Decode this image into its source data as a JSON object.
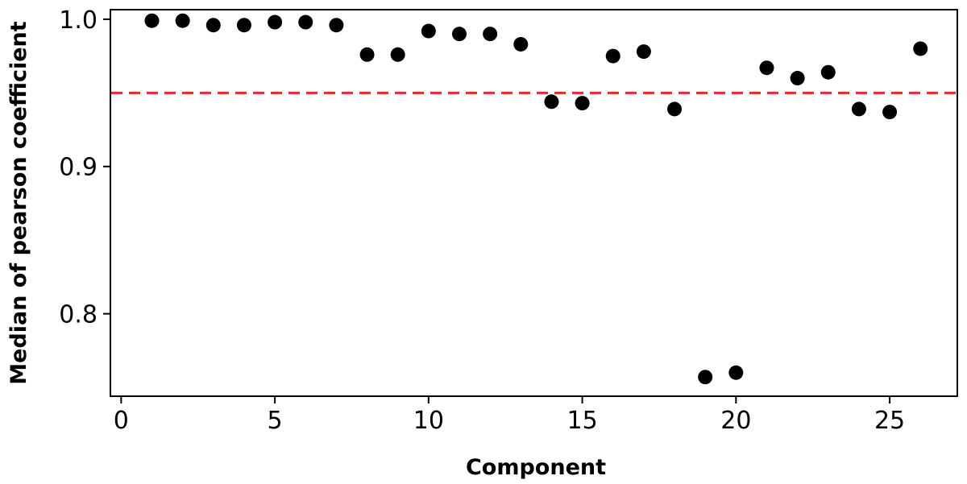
{
  "chart_data": {
    "type": "scatter",
    "title": "",
    "xlabel": "Component",
    "ylabel": "Median of pearson coefficient",
    "xlim": [
      -0.35,
      27.2
    ],
    "ylim": [
      0.744,
      1.0065
    ],
    "xticks": [
      0,
      5,
      10,
      15,
      20,
      25
    ],
    "yticks": [
      0.8,
      0.9,
      1.0
    ],
    "xtick_labels": [
      "0",
      "5",
      "10",
      "15",
      "20",
      "25"
    ],
    "ytick_labels": [
      "0.8",
      "0.9",
      "1.0"
    ],
    "grid": false,
    "legend": "none",
    "marker_color": "#000000",
    "series": [
      {
        "x": [
          1,
          2,
          3,
          4,
          5,
          6,
          7,
          8,
          9,
          10,
          11,
          12,
          13,
          14,
          15,
          16,
          17,
          18,
          19,
          20,
          21,
          22,
          23,
          24,
          25,
          26
        ],
        "y": [
          0.999,
          0.999,
          0.996,
          0.996,
          0.998,
          0.998,
          0.996,
          0.976,
          0.976,
          0.992,
          0.99,
          0.99,
          0.983,
          0.944,
          0.943,
          0.975,
          0.978,
          0.939,
          0.757,
          0.76,
          0.967,
          0.96,
          0.964,
          0.939,
          0.937,
          0.98
        ]
      }
    ],
    "reference_line": {
      "orientation": "horizontal",
      "y": 0.95,
      "style": "dashed",
      "color": "#e8282b"
    }
  }
}
